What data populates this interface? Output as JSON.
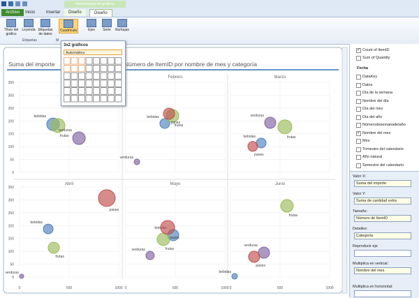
{
  "ribbon": {
    "context_label": "Herramientas de gráficos",
    "tabs": [
      "Archivo",
      "Inicio",
      "Insertar",
      "Diseño",
      "Diseño"
    ],
    "buttons": [
      "Título del gráfico",
      "Leyenda",
      "Etiquetas de datos",
      "Cuadrícula",
      "Ejes",
      "Serie",
      "Burbujas"
    ],
    "groups": [
      "Etiquetas",
      "M"
    ]
  },
  "dropdown": {
    "header": "3x2 gráficos",
    "option": "Automático"
  },
  "chart_data": {
    "type": "scatter",
    "title_parts": [
      "Suma del importe",
      "Número de ItemID por nombre de mes y categoría"
    ],
    "panels": [
      null,
      "Febrero",
      "Marzo",
      "Abril",
      "Mayo",
      "Junio"
    ],
    "xlim": [
      0,
      1000
    ],
    "xticks": [
      0,
      500,
      1000
    ],
    "ylim": [
      0,
      350
    ],
    "yticks": [
      0,
      50,
      100,
      150,
      200,
      250,
      300,
      350
    ],
    "grid": true,
    "series": [
      {
        "name": "bebidas",
        "color": "#4f81bd",
        "x": [
          338,
          394,
          310,
          289,
          479,
          42
        ],
        "y": [
          187,
          190,
          114,
          187,
          163,
          3
        ],
        "size": [
          81,
          49,
          49,
          49,
          64,
          16
        ]
      },
      {
        "name": "frutas",
        "color": "#9bbb59",
        "x": [
          387,
          472,
          549,
          345,
          380,
          570
        ],
        "y": [
          182,
          220,
          177,
          114,
          147,
          277
        ],
        "size": [
          100,
          81,
          100,
          64,
          81,
          81
        ]
      },
      {
        "name": "verduras",
        "color": "#8064a2",
        "x": [
          599,
          113,
          401,
          21,
          246,
          338
        ],
        "y": [
          133,
          41,
          193,
          3,
          84,
          95
        ],
        "size": [
          81,
          16,
          64,
          9,
          36,
          64
        ]
      },
      {
        "name": "panes",
        "color": "#c0504d",
        "x": [
          null,
          437,
          225,
          880,
          423,
          239
        ],
        "y": [
          null,
          228,
          101,
          307,
          193,
          79
        ],
        "size": [
          null,
          64,
          49,
          144,
          100,
          64
        ]
      }
    ]
  },
  "fields": {
    "measures": [
      {
        "label": "Count of ItemID",
        "checked": true
      },
      {
        "label": "Sum of Quantity",
        "checked": false
      }
    ],
    "table": "Fecha",
    "items": [
      {
        "label": "DataKey",
        "checked": false
      },
      {
        "label": "Datos",
        "checked": false
      },
      {
        "label": "Día de la semana",
        "checked": false
      },
      {
        "label": "Nombre del día",
        "checked": false
      },
      {
        "label": "Día del mes",
        "checked": false
      },
      {
        "label": "Día del año",
        "checked": false
      },
      {
        "label": "Númerodesemanadelaño",
        "checked": false
      },
      {
        "label": "Nombre del mes",
        "checked": true
      },
      {
        "label": "Mes",
        "checked": false
      },
      {
        "label": "Trimestre del calendario",
        "checked": false
      },
      {
        "label": "Año natural",
        "checked": false
      },
      {
        "label": "Semestre del calendario",
        "checked": false
      }
    ]
  },
  "layout_fields": [
    {
      "label": "Valor X:",
      "value": "Suma del importe"
    },
    {
      "label": "Valor Y:",
      "value": "Suma de cantidad extra"
    },
    {
      "label": "Tamaño:",
      "value": "Número de ItemID"
    },
    {
      "label": "Detalles:",
      "value": "Categoría"
    },
    {
      "label": "Reproducir eje",
      "value": null
    },
    {
      "label": "Multiplica en vertical:",
      "value": "Nombre del mes"
    },
    {
      "label": "Multiplica en horizontal:",
      "value": null
    }
  ]
}
